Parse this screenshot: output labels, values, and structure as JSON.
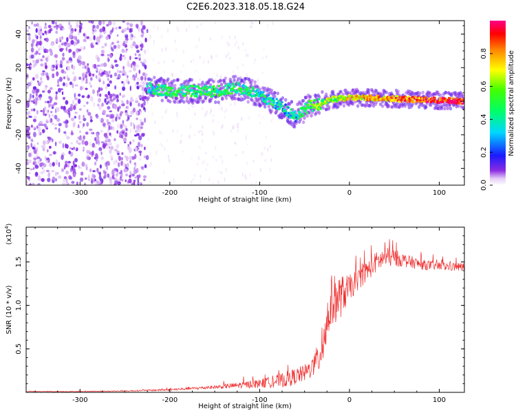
{
  "figure_title": "C2E6.2023.318.05.18.G24",
  "colors": {
    "snr_line": "#ee2a2a",
    "axes": "#000000"
  },
  "chart_data": [
    {
      "type": "heatmap",
      "title": "C2E6.2023.318.05.18.G24",
      "xlabel": "Height of straight line (km)",
      "ylabel": "Frequency (Hz)",
      "xlim": [
        -360,
        128
      ],
      "ylim": [
        -50,
        48
      ],
      "x_ticks": [
        -300,
        -200,
        -100,
        0,
        100
      ],
      "y_ticks": [
        -40,
        -20,
        0,
        20,
        40
      ],
      "colorbar": {
        "label": "Normalized spectral amplitude",
        "range": [
          0,
          1
        ],
        "ticks": [
          "0.0",
          "0.2",
          "0.4",
          "0.6",
          "0.8"
        ],
        "colormap": "rainbow (violet → blue → cyan → green → yellow → red → magenta)"
      },
      "noise_region_height_km": [
        -360,
        -225
      ],
      "ridge": {
        "x": [
          -225,
          -200,
          -175,
          -150,
          -125,
          -110,
          -95,
          -80,
          -70,
          -60,
          -55,
          -45,
          -35,
          -20,
          0,
          25,
          50,
          75,
          100,
          128
        ],
        "y": [
          8,
          6,
          6,
          6,
          8,
          6,
          2,
          -2,
          -5,
          -9,
          -7,
          -3,
          -2,
          1,
          2,
          2,
          1.5,
          1,
          0.5,
          0
        ],
        "amplitude": [
          0.4,
          0.45,
          0.45,
          0.45,
          0.45,
          0.45,
          0.4,
          0.35,
          0.35,
          0.35,
          0.4,
          0.5,
          0.55,
          0.6,
          0.7,
          0.75,
          0.8,
          0.85,
          0.9,
          0.95
        ]
      }
    },
    {
      "type": "line",
      "xlabel": "Height of straight line (km)",
      "ylabel": "SNR (10 * v/v)",
      "y_multiplier_label": "(x10",
      "y_multiplier_exp": "4",
      "y_multiplier_close": ")",
      "xlim": [
        -360,
        128
      ],
      "ylim": [
        0,
        1.9
      ],
      "x_ticks": [
        -300,
        -200,
        -100,
        0,
        100
      ],
      "y_ticks": [
        "0.5",
        "1.0",
        "1.5"
      ],
      "series": [
        {
          "envelope_x": [
            -360,
            -300,
            -250,
            -200,
            -150,
            -100,
            -70,
            -50,
            -40,
            -32,
            -25,
            -20,
            -10,
            0,
            10,
            20,
            30,
            40,
            50,
            60,
            80,
            100,
            128
          ],
          "envelope_y": [
            0.01,
            0.01,
            0.015,
            0.03,
            0.06,
            0.1,
            0.15,
            0.22,
            0.3,
            0.45,
            0.8,
            1.05,
            1.1,
            1.2,
            1.3,
            1.4,
            1.5,
            1.55,
            1.55,
            1.52,
            1.47,
            1.45,
            1.44
          ],
          "noise_amplitude": [
            0.003,
            0.004,
            0.005,
            0.012,
            0.02,
            0.05,
            0.09,
            0.1,
            0.12,
            0.22,
            0.3,
            0.3,
            0.25,
            0.15,
            0.12,
            0.12,
            0.12,
            0.12,
            0.1,
            0.08,
            0.06,
            0.05,
            0.05
          ]
        }
      ]
    }
  ]
}
